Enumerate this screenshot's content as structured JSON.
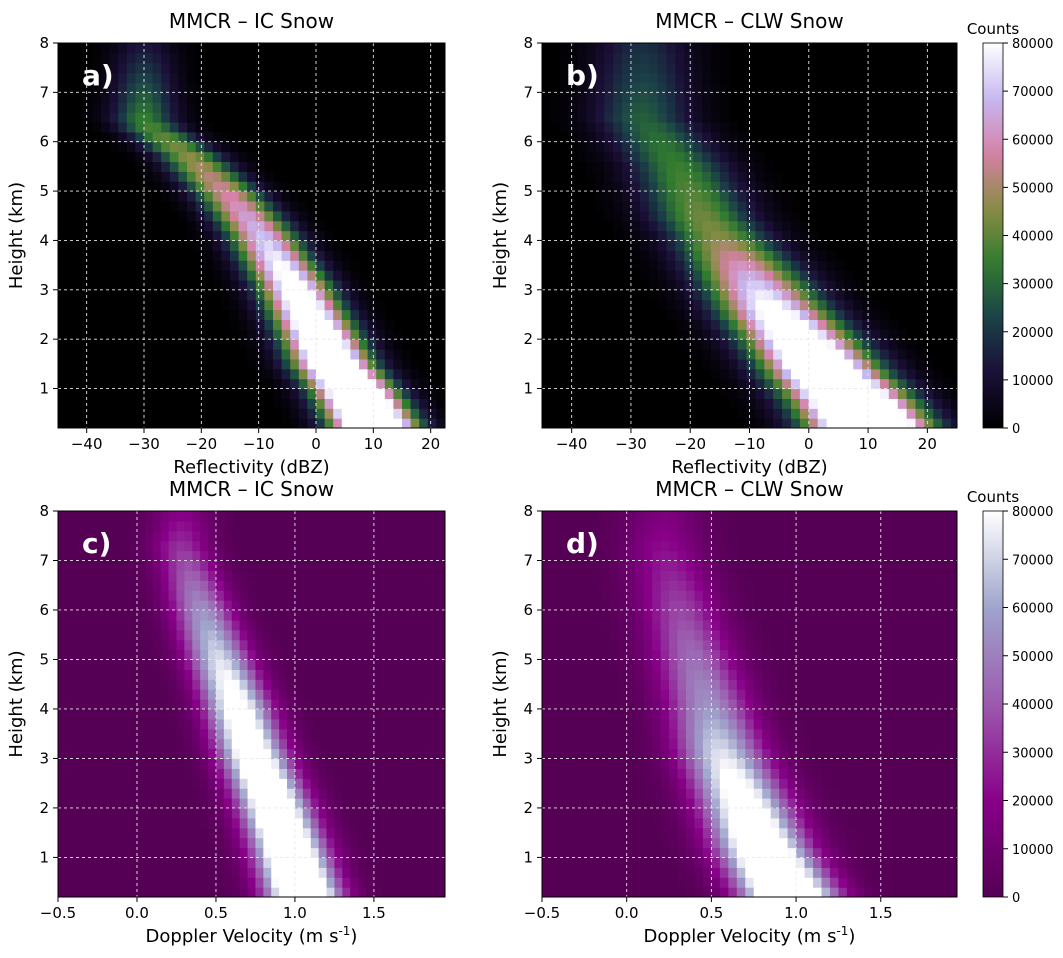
{
  "colors": {
    "cubehelix_stops": [
      "#000000",
      "#1b0f38",
      "#1a4148",
      "#317c2f",
      "#8a8c44",
      "#d681a7",
      "#c6b9f2",
      "#ffffff"
    ],
    "magenta_stops": [
      "#550055",
      "#880088",
      "#9c5aae",
      "#9fa5cc",
      "#ffffff"
    ]
  },
  "chart_data": [
    {
      "type": "heatmap",
      "panel": "a)",
      "title": "MMCR – IC Snow",
      "xlabel": "Reflectivity (dBZ)",
      "ylabel": "Height (km)",
      "xlim": [
        -45,
        22.5
      ],
      "ylim": [
        0.2,
        8
      ],
      "xticks": [
        -40,
        -30,
        -20,
        -10,
        0,
        10,
        20
      ],
      "yticks": [
        1,
        2,
        3,
        4,
        5,
        6,
        7,
        8
      ],
      "colormap": "cubehelix",
      "clim": [
        0,
        80000
      ],
      "grid": true,
      "ridge": [
        [
          -30,
          6.4
        ],
        [
          -22,
          5.7
        ],
        [
          -15,
          4.9
        ],
        [
          -10,
          4.2
        ],
        [
          -4,
          3.1
        ],
        [
          0,
          2.2
        ],
        [
          3,
          1.5
        ],
        [
          7,
          0.9
        ],
        [
          10,
          0.3
        ]
      ],
      "ridge_peak": [
        12000,
        70000,
        140000
      ],
      "spread": [
        3.6,
        4.8
      ],
      "bin_size": [
        1.5,
        0.2
      ]
    },
    {
      "type": "heatmap",
      "panel": "b)",
      "title": "MMCR – CLW Snow",
      "xlabel": "Reflectivity (dBZ)",
      "ylabel": "Height (km)",
      "xlim": [
        -45,
        25
      ],
      "ylim": [
        0.2,
        8
      ],
      "xticks": [
        -40,
        -30,
        -20,
        -10,
        0,
        10,
        20
      ],
      "yticks": [
        1,
        2,
        3,
        4,
        5,
        6,
        7,
        8
      ],
      "colormap": "cubehelix",
      "clim": [
        0,
        80000
      ],
      "grid": true,
      "ridge": [
        [
          -28,
          6.5
        ],
        [
          -22,
          5.5
        ],
        [
          -18,
          4.5
        ],
        [
          -12,
          3.6
        ],
        [
          -6,
          2.6
        ],
        [
          -1,
          1.9
        ],
        [
          3,
          1.3
        ],
        [
          7,
          0.8
        ],
        [
          10,
          0.3
        ]
      ],
      "ridge_peak": [
        18000,
        45000,
        150000
      ],
      "spread": [
        5.5,
        6.5
      ],
      "bin_size": [
        1.5,
        0.2
      ]
    },
    {
      "type": "heatmap",
      "panel": "c)",
      "title": "MMCR – IC Snow",
      "xlabel": "Doppler Velocity (m s⁻¹)",
      "ylabel": "Height (km)",
      "xlim": [
        -0.5,
        1.95
      ],
      "ylim": [
        0.2,
        8
      ],
      "xticks": [
        -0.5,
        0.0,
        0.5,
        1.0,
        1.5
      ],
      "xtick_labels": [
        "−0.5",
        "0.0",
        "0.5",
        "1.0",
        "1.5"
      ],
      "yticks": [
        1,
        2,
        3,
        4,
        5,
        6,
        7,
        8
      ],
      "colormap": "magenta",
      "clim": [
        0,
        80000
      ],
      "grid": true,
      "ridge": [
        [
          0.28,
          7.3
        ],
        [
          0.38,
          6.3
        ],
        [
          0.5,
          5.2
        ],
        [
          0.62,
          4.2
        ],
        [
          0.72,
          3.2
        ],
        [
          0.85,
          2.2
        ],
        [
          0.95,
          1.3
        ],
        [
          1.05,
          0.3
        ]
      ],
      "ridge_peak": [
        18000,
        90000,
        130000
      ],
      "spread": [
        0.13,
        0.16
      ],
      "bin_size": [
        0.05,
        0.2
      ]
    },
    {
      "type": "heatmap",
      "panel": "d)",
      "title": "MMCR – CLW Snow",
      "xlabel": "Doppler Velocity (m s⁻¹)",
      "ylabel": "Height (km)",
      "xlim": [
        -0.5,
        1.95
      ],
      "ylim": [
        0.2,
        8
      ],
      "xticks": [
        -0.5,
        0.0,
        0.5,
        1.0,
        1.5
      ],
      "xtick_labels": [
        "−0.5",
        "0.0",
        "0.5",
        "1.0",
        "1.5"
      ],
      "yticks": [
        1,
        2,
        3,
        4,
        5,
        6,
        7,
        8
      ],
      "colormap": "magenta",
      "clim": [
        0,
        80000
      ],
      "grid": true,
      "ridge": [
        [
          0.22,
          7.3
        ],
        [
          0.3,
          6.2
        ],
        [
          0.38,
          5.2
        ],
        [
          0.47,
          4.2
        ],
        [
          0.55,
          3.2
        ],
        [
          0.68,
          2.2
        ],
        [
          0.8,
          1.2
        ],
        [
          0.95,
          0.3
        ]
      ],
      "ridge_peak": [
        15000,
        55000,
        130000
      ],
      "spread": [
        0.16,
        0.19
      ],
      "bin_size": [
        0.05,
        0.2
      ]
    }
  ],
  "colorbars": [
    {
      "label": "Counts",
      "colormap": "cubehelix",
      "ticks": [
        0,
        10000,
        20000,
        30000,
        40000,
        50000,
        60000,
        70000,
        80000
      ],
      "tick_labels": [
        "0",
        "10000",
        "20000",
        "30000",
        "40000",
        "50000",
        "60000",
        "70000",
        "80000"
      ]
    },
    {
      "label": "Counts",
      "colormap": "magenta",
      "ticks": [
        0,
        10000,
        20000,
        30000,
        40000,
        50000,
        60000,
        70000,
        80000
      ],
      "tick_labels": [
        "0",
        "10000",
        "20000",
        "30000",
        "40000",
        "50000",
        "60000",
        "70000",
        "80000"
      ]
    }
  ]
}
